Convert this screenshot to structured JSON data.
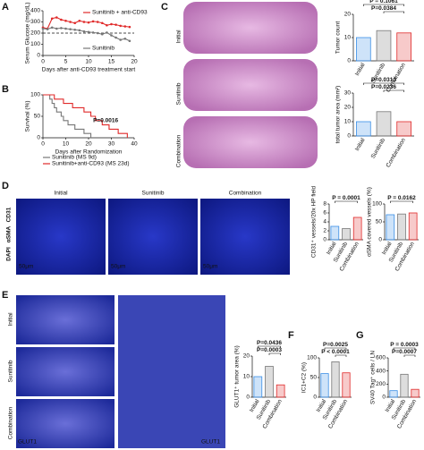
{
  "panel_labels": [
    "A",
    "B",
    "C",
    "D",
    "E",
    "F",
    "G"
  ],
  "images": {
    "C": {
      "rows": [
        "Initial",
        "Sunitinib",
        "Combination"
      ]
    },
    "D": {
      "columns": [
        "Initial",
        "Sunitinib",
        "Combination"
      ],
      "stain": [
        "CD31",
        "αSMA",
        "DAPI"
      ],
      "scale": "50μm"
    },
    "E": {
      "rows": [
        "Initial",
        "Sunitinib",
        "Combination"
      ],
      "stain": "GLUT1"
    }
  },
  "chart_data": [
    {
      "type": "line",
      "xlabel": "Days after anti-CD93 treatment start",
      "ylabel": "Serum Glucose (mg/dL)",
      "xlim": [
        0,
        20
      ],
      "xticks": [
        0,
        5,
        10,
        15,
        20
      ],
      "ylim": [
        0,
        400
      ],
      "yticks": [
        0,
        100,
        200,
        300,
        400
      ],
      "reference_line": 200,
      "series": [
        {
          "name": "Sunitinib + anti-CD93",
          "color": "#e02a2a",
          "x": [
            0,
            1,
            2,
            3,
            4,
            5,
            6,
            7,
            8,
            9,
            10,
            11,
            12,
            13,
            14,
            15,
            16,
            17,
            18,
            19
          ],
          "values": [
            250,
            240,
            330,
            340,
            320,
            310,
            300,
            290,
            310,
            300,
            295,
            305,
            300,
            290,
            270,
            280,
            275,
            265,
            260,
            255
          ]
        },
        {
          "name": "Sunitinib",
          "color": "#777777",
          "x": [
            0,
            1,
            2,
            3,
            4,
            5,
            6,
            7,
            8,
            9,
            10,
            11,
            12,
            13,
            14,
            15,
            16,
            17,
            18,
            19
          ],
          "values": [
            240,
            235,
            250,
            240,
            245,
            240,
            235,
            230,
            225,
            215,
            210,
            205,
            200,
            190,
            205,
            180,
            160,
            140,
            150,
            130
          ]
        }
      ]
    },
    {
      "type": "line",
      "step": true,
      "xlabel": "Days after Randomization",
      "ylabel": "Survival (%)",
      "xlim": [
        0,
        40
      ],
      "xticks": [
        0,
        10,
        20,
        30,
        40
      ],
      "ylim": [
        0,
        100
      ],
      "yticks": [
        0,
        50,
        100
      ],
      "annotations": [
        "P=0.0016"
      ],
      "series": [
        {
          "name": "Sunitinib (MS 9d)",
          "color": "#777777",
          "x": [
            0,
            3,
            4,
            5,
            6,
            8,
            9,
            11,
            14,
            18,
            21
          ],
          "values": [
            100,
            90,
            80,
            70,
            60,
            50,
            40,
            30,
            20,
            10,
            0
          ]
        },
        {
          "name": "Sunitinib+anti-CD93 (MS 23d)",
          "color": "#e02a2a",
          "x": [
            0,
            5,
            9,
            13,
            18,
            21,
            23,
            26,
            29,
            33,
            37
          ],
          "values": [
            100,
            90,
            80,
            70,
            60,
            50,
            40,
            30,
            20,
            10,
            0
          ]
        }
      ]
    },
    {
      "type": "bar",
      "ylabel": "Tumor count",
      "categories": [
        "Initial",
        "Sunitinib",
        "Combination"
      ],
      "values": [
        10,
        13,
        12
      ],
      "colors": [
        "#3a8ee6",
        "#777777",
        "#e02a2a"
      ],
      "ylim": [
        0,
        20
      ],
      "yticks": [
        0,
        10,
        20
      ],
      "annotations": [
        "P = 0.1061",
        "P=0.0384"
      ]
    },
    {
      "type": "bar",
      "ylabel": "total tumor area (mm²)",
      "categories": [
        "Initial",
        "Sunitinib",
        "Combination"
      ],
      "values": [
        10,
        17,
        10
      ],
      "colors": [
        "#3a8ee6",
        "#777777",
        "#e02a2a"
      ],
      "ylim": [
        0,
        30
      ],
      "yticks": [
        0,
        10,
        20,
        30
      ],
      "annotations": [
        "P=0.0313",
        "P=0.0236"
      ]
    },
    {
      "type": "bar",
      "ylabel": "CD31⁺ vessels/20x HP field",
      "categories": [
        "Initial",
        "Sunitinib",
        "Combination"
      ],
      "values": [
        3,
        2.5,
        5
      ],
      "colors": [
        "#3a8ee6",
        "#777777",
        "#e02a2a"
      ],
      "ylim": [
        0,
        8
      ],
      "yticks": [
        0,
        2,
        4,
        6,
        8
      ],
      "annotations": [
        "P = 0.0001"
      ]
    },
    {
      "type": "bar",
      "ylabel": "αSMA covered vessels (%)",
      "categories": [
        "Initial",
        "Sunitinib",
        "Combination"
      ],
      "values": [
        70,
        72,
        75
      ],
      "colors": [
        "#3a8ee6",
        "#777777",
        "#e02a2a"
      ],
      "ylim": [
        0,
        100
      ],
      "yticks": [
        0,
        50,
        100
      ],
      "annotations": [
        "P = 0.0162"
      ]
    },
    {
      "type": "bar",
      "ylabel": "GLUT1⁺ tumor area (%)",
      "categories": [
        "Initial",
        "Sunitinib",
        "Combination"
      ],
      "values": [
        10,
        15,
        6
      ],
      "colors": [
        "#3a8ee6",
        "#777777",
        "#e02a2a"
      ],
      "ylim": [
        0,
        20
      ],
      "yticks": [
        0,
        10,
        20
      ],
      "annotations": [
        "P=0.0436",
        "P=0.0003"
      ]
    },
    {
      "type": "bar",
      "ylabel": "IC1+C2 (%)",
      "categories": [
        "Initial",
        "Sunitinib",
        "Combination"
      ],
      "values": [
        60,
        90,
        62
      ],
      "colors": [
        "#3a8ee6",
        "#777777",
        "#e02a2a"
      ],
      "ylim": [
        0,
        100
      ],
      "yticks": [
        0,
        50,
        100
      ],
      "annotations": [
        "P=0.0025",
        "P < 0.0001"
      ]
    },
    {
      "type": "bar",
      "ylabel": "SV40 Tag⁺ cells / LN",
      "categories": [
        "Initial",
        "Sunitinib",
        "Combination"
      ],
      "values": [
        100,
        350,
        120
      ],
      "colors": [
        "#3a8ee6",
        "#777777",
        "#e02a2a"
      ],
      "ylim": [
        0,
        600
      ],
      "yticks": [
        0,
        200,
        400,
        600
      ],
      "annotations": [
        "P = 0.0003",
        "P=0.0007"
      ]
    }
  ]
}
